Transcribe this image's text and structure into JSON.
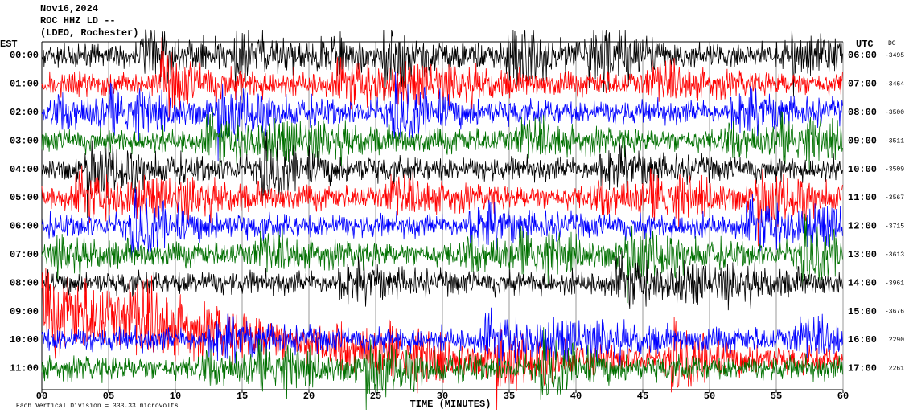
{
  "chart_data": {
    "type": "helicorder",
    "title_lines": [
      "Nov16,2024",
      "ROC HHZ LD --",
      "(LDEO, Rochester)"
    ],
    "left_label": "EST",
    "right_label": "UTC",
    "dc_label": "DC",
    "xlabel": "TIME (MINUTES)",
    "footer": "Each Vertical Division =  333.33 microvolts",
    "xlim": [
      0,
      60
    ],
    "xticks": [
      {
        "value": 0,
        "label": "00"
      },
      {
        "value": 5,
        "label": "05"
      },
      10,
      15,
      20,
      25,
      30,
      35,
      40,
      45,
      50,
      55,
      60
    ],
    "grid": true,
    "rows": [
      {
        "est": "00:00",
        "utc": "06:00",
        "dc": -3495,
        "color": "#000000"
      },
      {
        "est": "01:00",
        "utc": "07:00",
        "dc": -3464,
        "color": "#ff0000"
      },
      {
        "est": "02:00",
        "utc": "08:00",
        "dc": -3500,
        "color": "#0000ff"
      },
      {
        "est": "03:00",
        "utc": "09:00",
        "dc": -3511,
        "color": "#007000"
      },
      {
        "est": "04:00",
        "utc": "10:00",
        "dc": -3509,
        "color": "#000000"
      },
      {
        "est": "05:00",
        "utc": "11:00",
        "dc": -3567,
        "color": "#ff0000"
      },
      {
        "est": "06:00",
        "utc": "12:00",
        "dc": -3715,
        "color": "#0000ff"
      },
      {
        "est": "07:00",
        "utc": "13:00",
        "dc": -3613,
        "color": "#007000"
      },
      {
        "est": "08:00",
        "utc": "14:00",
        "dc": -3961,
        "color": "#000000"
      },
      {
        "est": "09:00",
        "utc": "15:00",
        "dc": -3676,
        "color": "#ff0000"
      },
      {
        "est": "10:00",
        "utc": "16:00",
        "dc": 2290,
        "color": "#0000ff"
      },
      {
        "est": "11:00",
        "utc": "17:00",
        "dc": 2261,
        "color": "#007000"
      }
    ]
  }
}
